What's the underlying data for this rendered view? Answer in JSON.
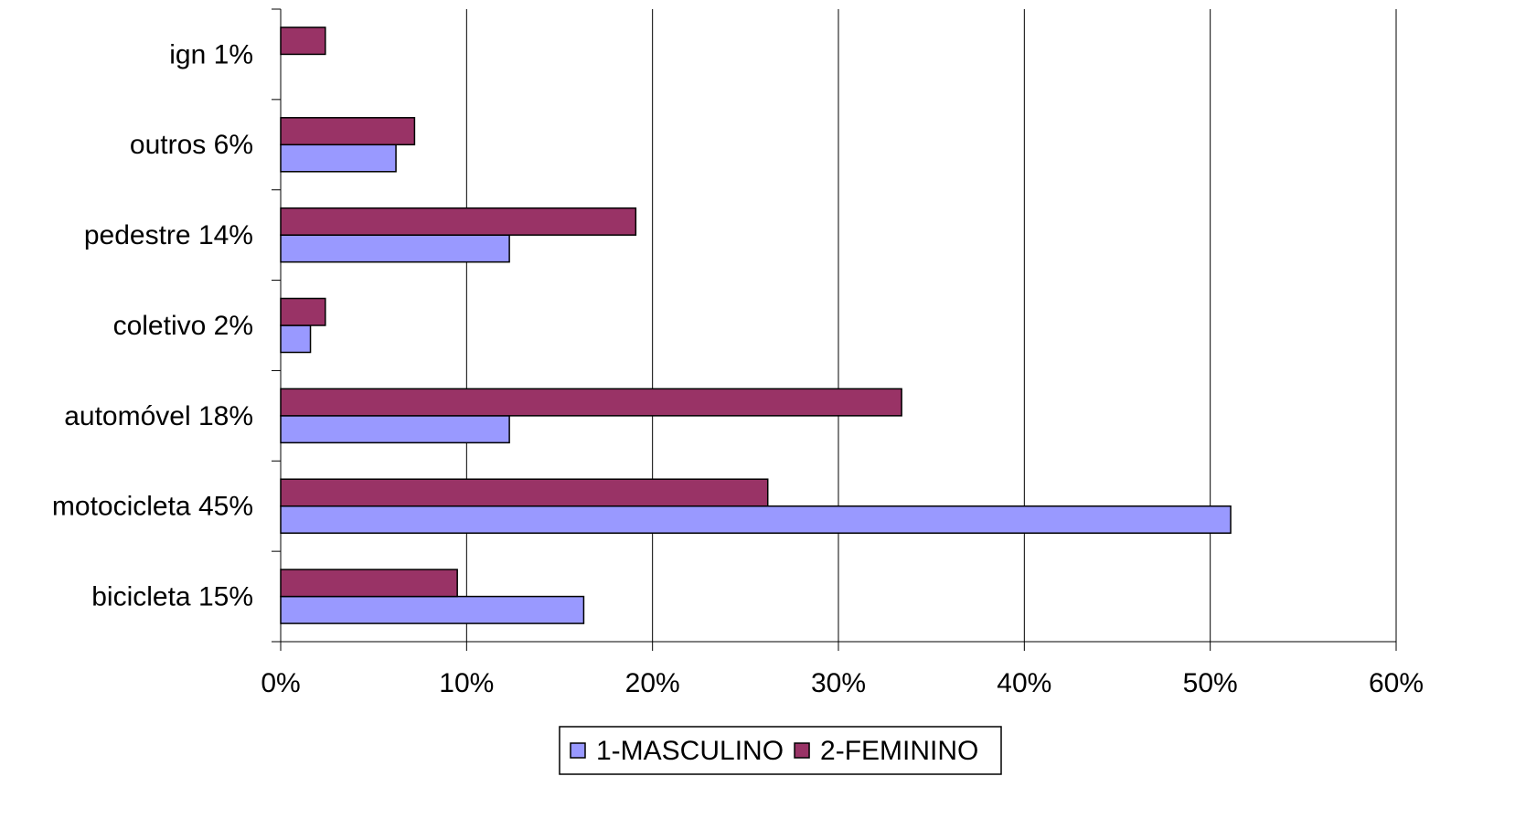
{
  "chart_data": {
    "type": "bar",
    "orientation": "horizontal",
    "categories": [
      "bicicleta 15%",
      "motocicleta 45%",
      "automóvel 18%",
      "coletivo 2%",
      "pedestre 14%",
      "outros 6%",
      "ign 1%"
    ],
    "series": [
      {
        "name": "1-MASCULINO",
        "color": "#9999ff",
        "values": [
          16.3,
          51.1,
          12.3,
          1.6,
          12.3,
          6.2,
          0
        ]
      },
      {
        "name": "2-FEMININO",
        "color": "#993366",
        "values": [
          9.5,
          26.2,
          33.4,
          2.4,
          19.1,
          7.2,
          2.4
        ]
      }
    ],
    "xlim": [
      0,
      60
    ],
    "xticks": [
      {
        "value": 0,
        "label": "0%"
      },
      {
        "value": 10,
        "label": "10%"
      },
      {
        "value": 20,
        "label": "20%"
      },
      {
        "value": 30,
        "label": "30%"
      },
      {
        "value": 40,
        "label": "40%"
      },
      {
        "value": 50,
        "label": "50%"
      },
      {
        "value": 60,
        "label": "60%"
      }
    ],
    "grid": true,
    "legend": "bottom"
  }
}
